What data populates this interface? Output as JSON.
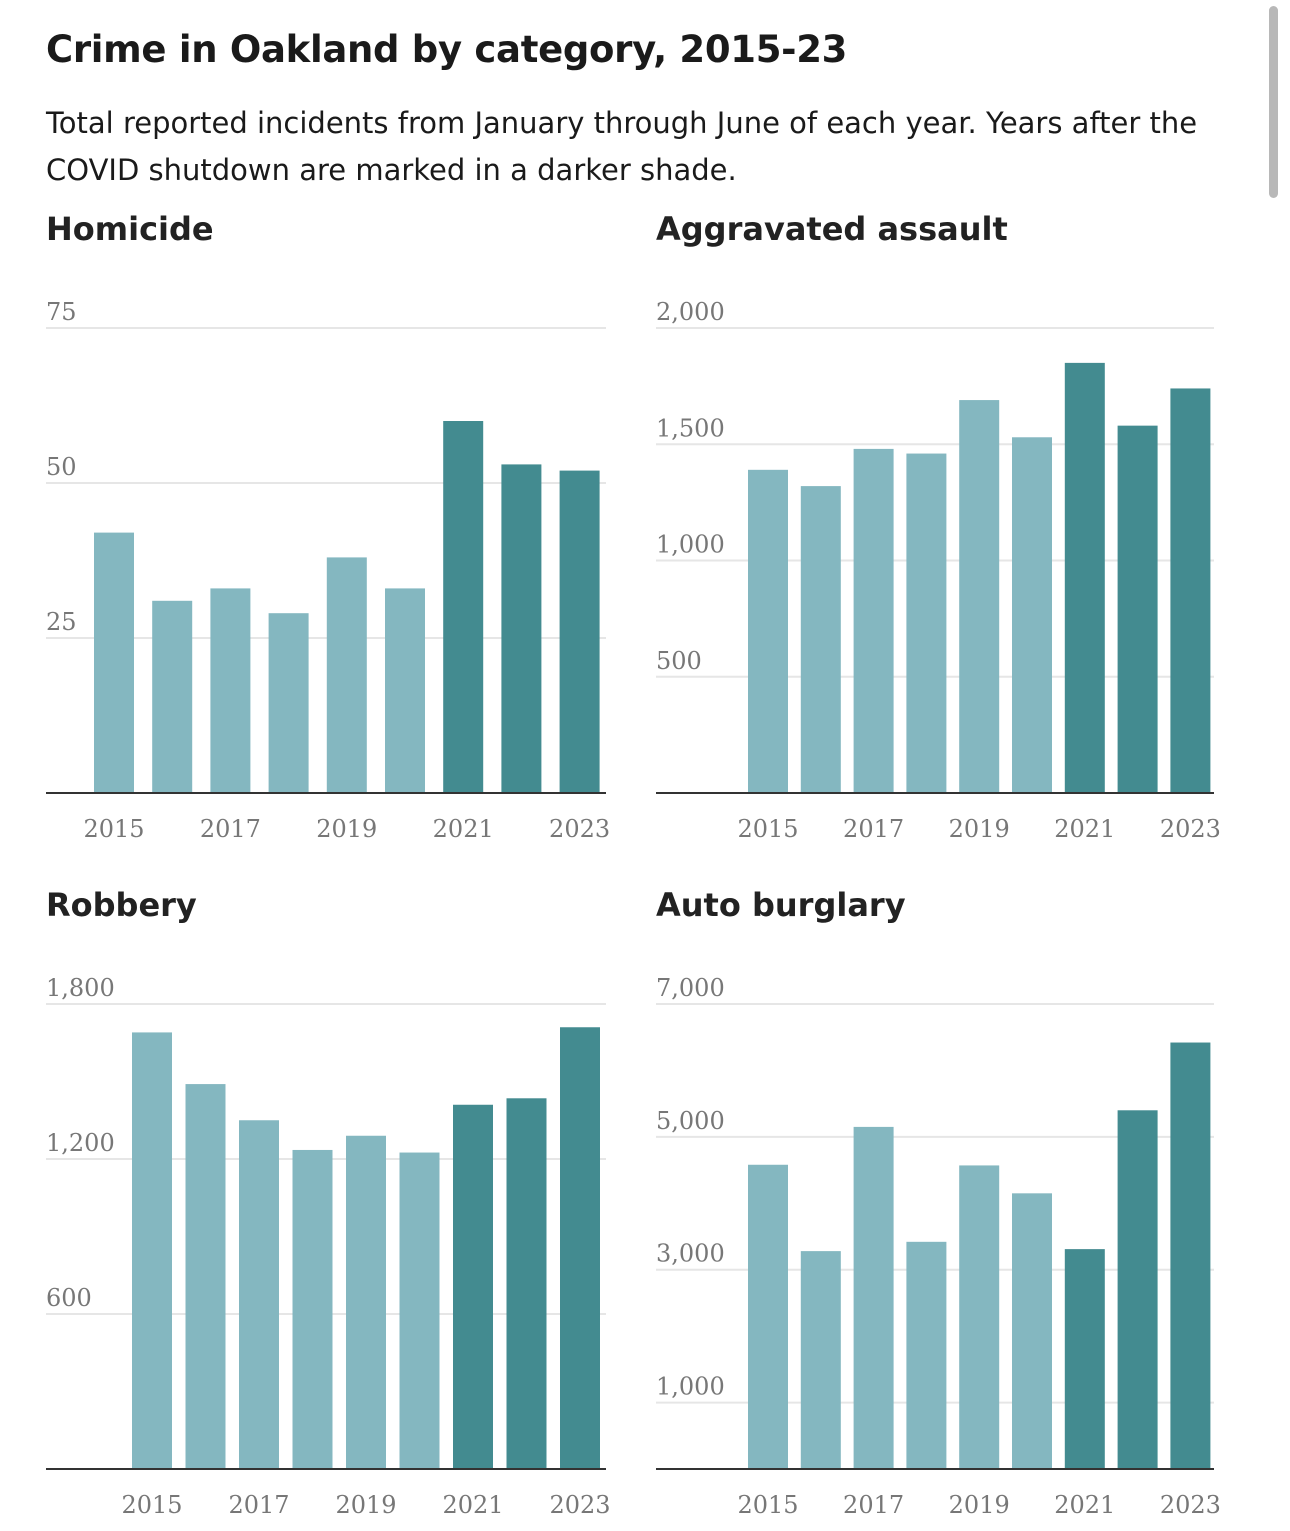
{
  "title": "Crime in Oakland by category, 2015-23",
  "subtitle": "Total reported incidents from January through June of each year. Years after the COVID shutdown are marked in a darker shade.",
  "colors": {
    "pre_covid": "#84b7c0",
    "post_covid": "#438b90",
    "grid": "#e6e6e6",
    "axis": "#333333",
    "tick_text": "#777777"
  },
  "chart_data": [
    {
      "type": "bar",
      "title": "Homicide",
      "categories": [
        "2015",
        "2016",
        "2017",
        "2018",
        "2019",
        "2020",
        "2021",
        "2022",
        "2023"
      ],
      "values": [
        42,
        31,
        33,
        29,
        38,
        33,
        60,
        53,
        52
      ],
      "dark_from_index": 6,
      "xticks": [
        "2015",
        "2017",
        "2019",
        "2021",
        "2023"
      ],
      "ylim": [
        0,
        75
      ],
      "yticks": [
        25,
        50,
        75
      ],
      "ytick_labels": [
        "25",
        "50",
        "75"
      ]
    },
    {
      "type": "bar",
      "title": "Aggravated assault",
      "categories": [
        "2015",
        "2016",
        "2017",
        "2018",
        "2019",
        "2020",
        "2021",
        "2022",
        "2023"
      ],
      "values": [
        1390,
        1320,
        1480,
        1460,
        1690,
        1530,
        1850,
        1580,
        1740
      ],
      "dark_from_index": 6,
      "xticks": [
        "2015",
        "2017",
        "2019",
        "2021",
        "2023"
      ],
      "ylim": [
        0,
        2000
      ],
      "yticks": [
        500,
        1000,
        1500,
        2000
      ],
      "ytick_labels": [
        "500",
        "1,000",
        "1,500",
        "2,000"
      ]
    },
    {
      "type": "bar",
      "title": "Robbery",
      "categories": [
        "2015",
        "2016",
        "2017",
        "2018",
        "2019",
        "2020",
        "2021",
        "2022",
        "2023"
      ],
      "values": [
        1690,
        1490,
        1350,
        1235,
        1290,
        1225,
        1410,
        1435,
        1710
      ],
      "dark_from_index": 6,
      "xticks": [
        "2015",
        "2017",
        "2019",
        "2021",
        "2023"
      ],
      "ylim": [
        0,
        1800
      ],
      "yticks": [
        600,
        1200,
        1800
      ],
      "ytick_labels": [
        "600",
        "1,200",
        "1,800"
      ]
    },
    {
      "type": "bar",
      "title": "Auto burglary",
      "categories": [
        "2015",
        "2016",
        "2017",
        "2018",
        "2019",
        "2020",
        "2021",
        "2022",
        "2023"
      ],
      "values": [
        4580,
        3280,
        5150,
        3420,
        4570,
        4150,
        3310,
        5400,
        6420
      ],
      "dark_from_index": 6,
      "xticks": [
        "2015",
        "2017",
        "2019",
        "2021",
        "2023"
      ],
      "ylim": [
        0,
        7000
      ],
      "yticks": [
        1000,
        3000,
        5000,
        7000
      ],
      "ytick_labels": [
        "1,000",
        "3,000",
        "5,000",
        "7,000"
      ]
    }
  ]
}
